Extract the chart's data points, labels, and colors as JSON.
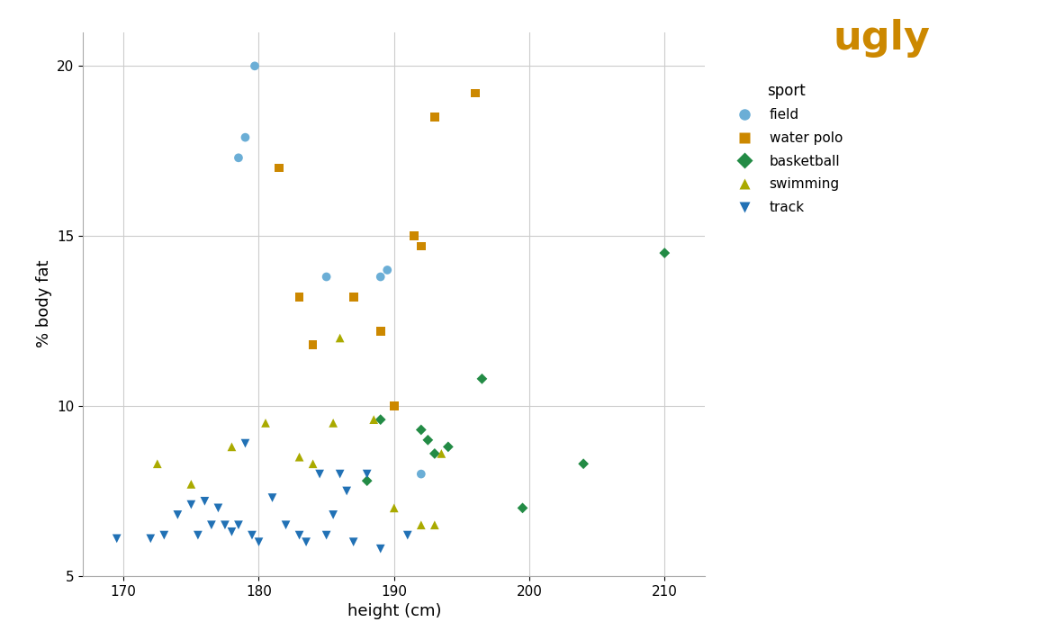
{
  "title": "ugly",
  "title_color": "#CC8800",
  "xlabel": "height (cm)",
  "ylabel": "% body fat",
  "xlim": [
    167,
    213
  ],
  "ylim": [
    5,
    21
  ],
  "xticks": [
    170,
    180,
    190,
    200,
    210
  ],
  "yticks": [
    5,
    10,
    15,
    20
  ],
  "legend_title": "sport",
  "background_color": "#ffffff",
  "right_bar_color": "#CC8800",
  "sports": {
    "field": {
      "color": "#6BAED6",
      "marker": "o",
      "markersize": 7,
      "x": [
        179.7,
        179.0,
        178.5,
        185.0,
        189.0,
        189.5,
        192.0
      ],
      "y": [
        20.0,
        17.9,
        17.3,
        13.8,
        13.8,
        14.0,
        8.0
      ]
    },
    "water polo": {
      "color": "#CC8800",
      "marker": "s",
      "markersize": 7,
      "x": [
        181.5,
        183.0,
        184.0,
        187.0,
        189.0,
        190.0,
        191.5,
        192.0,
        193.0,
        196.0
      ],
      "y": [
        17.0,
        13.2,
        11.8,
        13.2,
        12.2,
        10.0,
        15.0,
        14.7,
        18.5,
        19.2
      ]
    },
    "basketball": {
      "color": "#238B45",
      "marker": "D",
      "markersize": 6,
      "x": [
        188.0,
        189.0,
        192.0,
        192.5,
        193.0,
        194.0,
        196.5,
        199.5,
        204.0,
        210.0
      ],
      "y": [
        7.8,
        9.6,
        9.3,
        9.0,
        8.6,
        8.8,
        10.8,
        7.0,
        8.3,
        14.5
      ]
    },
    "swimming": {
      "color": "#AAAA00",
      "marker": "^",
      "markersize": 7,
      "x": [
        172.5,
        175.0,
        178.0,
        180.5,
        183.0,
        184.0,
        185.5,
        186.0,
        188.5,
        190.0,
        192.0,
        193.0,
        193.5
      ],
      "y": [
        8.3,
        7.7,
        8.8,
        9.5,
        8.5,
        8.3,
        9.5,
        12.0,
        9.6,
        7.0,
        6.5,
        6.5,
        8.6
      ]
    },
    "track": {
      "color": "#2171B5",
      "marker": "v",
      "markersize": 7,
      "x": [
        169.5,
        172.0,
        173.0,
        174.0,
        175.0,
        175.5,
        176.0,
        176.5,
        177.0,
        177.5,
        178.0,
        178.5,
        179.0,
        179.5,
        180.0,
        181.0,
        182.0,
        183.0,
        183.5,
        184.5,
        185.0,
        185.5,
        186.0,
        186.5,
        187.0,
        188.0,
        189.0,
        191.0
      ],
      "y": [
        6.1,
        6.1,
        6.2,
        6.8,
        7.1,
        6.2,
        7.2,
        6.5,
        7.0,
        6.5,
        6.3,
        6.5,
        8.9,
        6.2,
        6.0,
        7.3,
        6.5,
        6.2,
        6.0,
        8.0,
        6.2,
        6.8,
        8.0,
        7.5,
        6.0,
        8.0,
        5.8,
        6.2
      ]
    }
  },
  "grid_color": "#cccccc",
  "axis_linewidth": 0.8,
  "legend_fontsize": 11,
  "axis_label_fontsize": 13,
  "tick_fontsize": 11,
  "title_fontsize": 32
}
